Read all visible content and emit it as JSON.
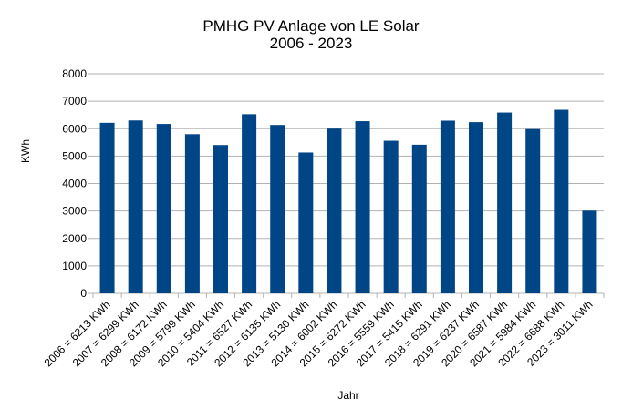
{
  "chart_data": {
    "type": "bar",
    "title": "PMHG PV Anlage von LE Solar",
    "subtitle": "2006 - 2023",
    "xlabel": "Jahr",
    "ylabel": "KWh",
    "ylim": [
      0,
      8000
    ],
    "yticks": [
      "0",
      "1000",
      "2000",
      "3000",
      "4000",
      "5000",
      "6000",
      "7000",
      "8000"
    ],
    "grid": true,
    "legend": "none",
    "bar_color": "#004586",
    "categories": [
      "2006 = 6213 KWh",
      "2007 = 6299 KWh",
      "2008 = 6172 KWh",
      "2009 = 5799 KWh",
      "2010 = 5404 KWh",
      "2011 = 6527 KWh",
      "2012 = 6135 KWh",
      "2013 = 5130 KWh",
      "2014 = 6002 KWh",
      "2015 = 6272 KWh",
      "2016 = 5559 KWh",
      "2017 = 5415 KWh",
      "2018 = 6291 KWh",
      "2019 = 6237 KWh",
      "2020 = 6587 KWh",
      "2021 = 5984 KWh",
      "2022 = 6688 KWh",
      "2023 = 3011 KWh"
    ],
    "values": [
      6213,
      6299,
      6172,
      5799,
      5404,
      6527,
      6135,
      5130,
      6002,
      6272,
      5559,
      5415,
      6291,
      6237,
      6587,
      5984,
      6688,
      3011
    ]
  }
}
